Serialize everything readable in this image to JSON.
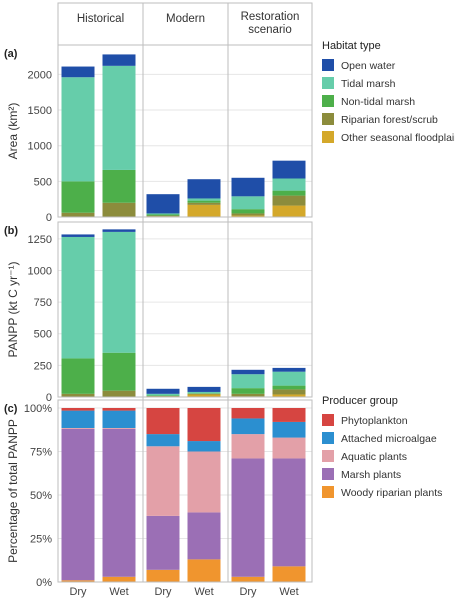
{
  "columns": [
    "Historical",
    "Modern",
    "Restoration scenario"
  ],
  "categories": [
    "Dry",
    "Wet"
  ],
  "chart_data": [
    {
      "type": "bar",
      "panel_label": "(a)",
      "ylabel": "Area (km²)",
      "ylim": [
        0,
        2300
      ],
      "yticks": [
        0,
        500,
        1000,
        1500,
        2000
      ],
      "ytick_labels": [
        "0",
        "500",
        "1000",
        "1500",
        "2000"
      ],
      "legend_title": "Habitat type",
      "legend_order": [
        "Open water",
        "Tidal marsh",
        "Non-tidal marsh",
        "Riparian forest/scrub",
        "Other seasonal floodplain"
      ],
      "colors": {
        "Open water": "#1f4ea8",
        "Tidal marsh": "#66cdaa",
        "Non-tidal marsh": "#4daf4a",
        "Riparian forest/scrub": "#8c8c3c",
        "Other seasonal floodplain": "#d4a82a"
      },
      "stack_order": [
        "Other seasonal floodplain",
        "Riparian forest/scrub",
        "Non-tidal marsh",
        "Tidal marsh",
        "Open water"
      ],
      "bars": [
        {
          "column": "Historical",
          "category": "Dry",
          "values": {
            "Other seasonal floodplain": 0,
            "Riparian forest/scrub": 60,
            "Non-tidal marsh": 440,
            "Tidal marsh": 1460,
            "Open water": 150
          }
        },
        {
          "column": "Historical",
          "category": "Wet",
          "values": {
            "Other seasonal floodplain": 0,
            "Riparian forest/scrub": 200,
            "Non-tidal marsh": 460,
            "Tidal marsh": 1460,
            "Open water": 160
          }
        },
        {
          "column": "Modern",
          "category": "Dry",
          "values": {
            "Other seasonal floodplain": 10,
            "Riparian forest/scrub": 10,
            "Non-tidal marsh": 15,
            "Tidal marsh": 15,
            "Open water": 270
          }
        },
        {
          "column": "Modern",
          "category": "Wet",
          "values": {
            "Other seasonal floodplain": 170,
            "Riparian forest/scrub": 30,
            "Non-tidal marsh": 30,
            "Tidal marsh": 30,
            "Open water": 270
          }
        },
        {
          "column": "Restoration scenario",
          "category": "Dry",
          "values": {
            "Other seasonal floodplain": 20,
            "Riparian forest/scrub": 30,
            "Non-tidal marsh": 60,
            "Tidal marsh": 180,
            "Open water": 260
          }
        },
        {
          "column": "Restoration scenario",
          "category": "Wet",
          "values": {
            "Other seasonal floodplain": 160,
            "Riparian forest/scrub": 140,
            "Non-tidal marsh": 70,
            "Tidal marsh": 170,
            "Open water": 250
          }
        }
      ]
    },
    {
      "type": "bar",
      "panel_label": "(b)",
      "ylabel": "PANPP (kt C yr⁻¹)",
      "ylim": [
        0,
        1320
      ],
      "yticks": [
        0,
        250,
        500,
        750,
        1000,
        1250
      ],
      "ytick_labels": [
        "0",
        "250",
        "500",
        "750",
        "1000",
        "1250"
      ],
      "colors": {
        "Open water": "#1f4ea8",
        "Tidal marsh": "#66cdaa",
        "Non-tidal marsh": "#4daf4a",
        "Riparian forest/scrub": "#8c8c3c",
        "Other seasonal floodplain": "#d4a82a"
      },
      "stack_order": [
        "Other seasonal floodplain",
        "Riparian forest/scrub",
        "Non-tidal marsh",
        "Tidal marsh",
        "Open water"
      ],
      "bars": [
        {
          "column": "Historical",
          "category": "Dry",
          "values": {
            "Other seasonal floodplain": 0,
            "Riparian forest/scrub": 25,
            "Non-tidal marsh": 280,
            "Tidal marsh": 960,
            "Open water": 20
          }
        },
        {
          "column": "Historical",
          "category": "Wet",
          "values": {
            "Other seasonal floodplain": 0,
            "Riparian forest/scrub": 50,
            "Non-tidal marsh": 300,
            "Tidal marsh": 955,
            "Open water": 20
          }
        },
        {
          "column": "Modern",
          "category": "Dry",
          "values": {
            "Other seasonal floodplain": 5,
            "Riparian forest/scrub": 3,
            "Non-tidal marsh": 5,
            "Tidal marsh": 12,
            "Open water": 40
          }
        },
        {
          "column": "Modern",
          "category": "Wet",
          "values": {
            "Other seasonal floodplain": 20,
            "Riparian forest/scrub": 5,
            "Non-tidal marsh": 5,
            "Tidal marsh": 10,
            "Open water": 40
          }
        },
        {
          "column": "Restoration scenario",
          "category": "Dry",
          "values": {
            "Other seasonal floodplain": 5,
            "Riparian forest/scrub": 20,
            "Non-tidal marsh": 45,
            "Tidal marsh": 110,
            "Open water": 35
          }
        },
        {
          "column": "Restoration scenario",
          "category": "Wet",
          "values": {
            "Other seasonal floodplain": 20,
            "Riparian forest/scrub": 40,
            "Non-tidal marsh": 30,
            "Tidal marsh": 110,
            "Open water": 30
          }
        }
      ]
    },
    {
      "type": "bar",
      "panel_label": "(c)",
      "ylabel": "Percentage of total PANPP",
      "ylim": [
        0,
        100
      ],
      "yticks": [
        0,
        25,
        50,
        75,
        100
      ],
      "ytick_labels": [
        "0%",
        "25%",
        "50%",
        "75%",
        "100%"
      ],
      "legend_title": "Producer group",
      "legend_order": [
        "Phytoplankton",
        "Attached microalgae",
        "Aquatic plants",
        "Marsh plants",
        "Woody riparian plants"
      ],
      "colors": {
        "Phytoplankton": "#d64541",
        "Attached microalgae": "#2b8fd0",
        "Aquatic plants": "#e3a0a8",
        "Marsh plants": "#9b6fb5",
        "Woody riparian plants": "#f0952e"
      },
      "stack_order": [
        "Woody riparian plants",
        "Marsh plants",
        "Aquatic plants",
        "Attached microalgae",
        "Phytoplankton"
      ],
      "bars": [
        {
          "column": "Historical",
          "category": "Dry",
          "values": {
            "Woody riparian plants": 1,
            "Marsh plants": 87,
            "Aquatic plants": 0.5,
            "Attached microalgae": 10,
            "Phytoplankton": 1.5
          }
        },
        {
          "column": "Historical",
          "category": "Wet",
          "values": {
            "Woody riparian plants": 3,
            "Marsh plants": 85,
            "Aquatic plants": 0.5,
            "Attached microalgae": 10,
            "Phytoplankton": 1.5
          }
        },
        {
          "column": "Modern",
          "category": "Dry",
          "values": {
            "Woody riparian plants": 7,
            "Marsh plants": 31,
            "Aquatic plants": 40,
            "Attached microalgae": 7,
            "Phytoplankton": 15
          }
        },
        {
          "column": "Modern",
          "category": "Wet",
          "values": {
            "Woody riparian plants": 13,
            "Marsh plants": 27,
            "Aquatic plants": 35,
            "Attached microalgae": 6,
            "Phytoplankton": 19
          }
        },
        {
          "column": "Restoration scenario",
          "category": "Dry",
          "values": {
            "Woody riparian plants": 3,
            "Marsh plants": 68,
            "Aquatic plants": 14,
            "Attached microalgae": 9,
            "Phytoplankton": 6
          }
        },
        {
          "column": "Restoration scenario",
          "category": "Wet",
          "values": {
            "Woody riparian plants": 9,
            "Marsh plants": 62,
            "Aquatic plants": 12,
            "Attached microalgae": 9,
            "Phytoplankton": 8
          }
        }
      ]
    }
  ]
}
